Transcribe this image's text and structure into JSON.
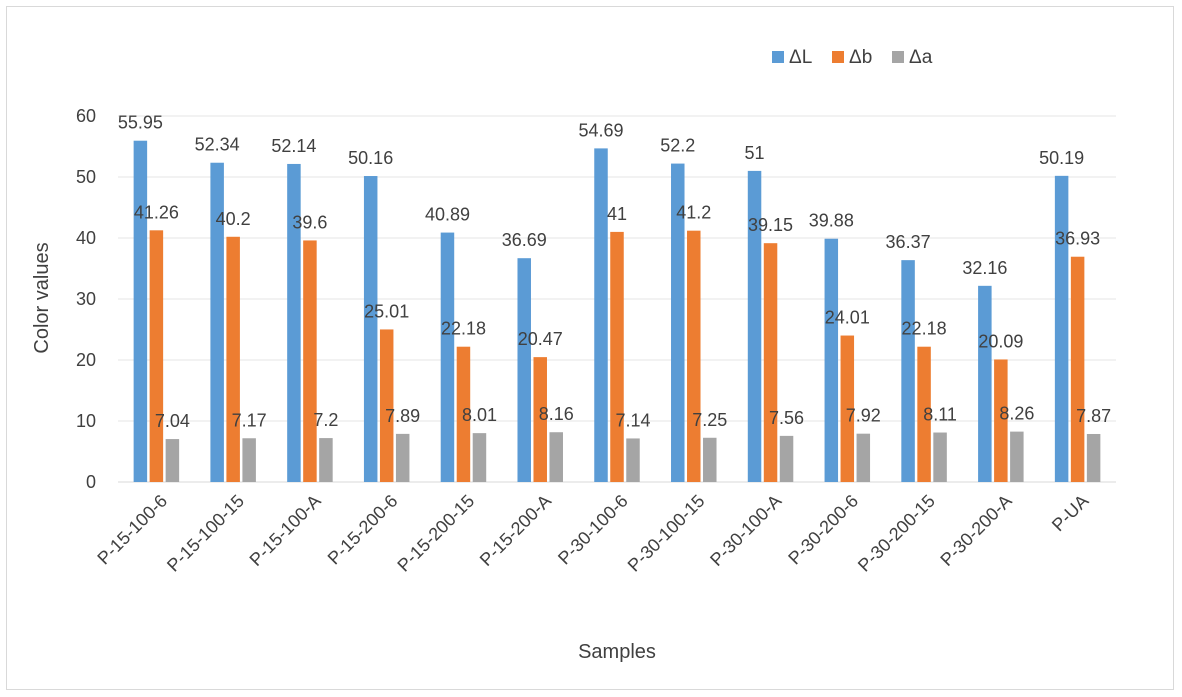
{
  "chart_data": {
    "type": "bar",
    "title": "",
    "xlabel": "Samples",
    "ylabel": "Color values",
    "ylim": [
      0,
      60
    ],
    "yticks": [
      0,
      10,
      20,
      30,
      40,
      50,
      60
    ],
    "grid": true,
    "legend_position": "top-right",
    "categories": [
      "P-15-100-6",
      "P-15-100-15",
      "P-15-100-A",
      "P-15-200-6",
      "P-15-200-15",
      "P-15-200-A",
      "P-30-100-6",
      "P-30-100-15",
      "P-30-100-A",
      "P-30-200-6",
      "P-30-200-15",
      "P-30-200-A",
      "P-UA"
    ],
    "series": [
      {
        "name": "ΔL",
        "color": "#5b9bd5",
        "values": [
          55.95,
          52.34,
          52.14,
          50.16,
          40.89,
          36.69,
          54.69,
          52.2,
          51,
          39.88,
          36.37,
          32.16,
          50.19
        ],
        "labels": [
          "55.95",
          "52.34",
          "52.14",
          "50.16",
          "40.89",
          "36.69",
          "54.69",
          "52.2",
          "51",
          "39.88",
          "36.37",
          "32.16",
          "50.19"
        ]
      },
      {
        "name": "Δb",
        "color": "#ed7d31",
        "values": [
          41.26,
          40.2,
          39.6,
          25.01,
          22.18,
          20.47,
          41,
          41.2,
          39.15,
          24.01,
          22.18,
          20.09,
          36.93
        ],
        "labels": [
          "41.26",
          "40.2",
          "39.6",
          "25.01",
          "22.18",
          "20.47",
          "41",
          "41.2",
          "39.15",
          "24.01",
          "22.18",
          "20.09",
          "36.93"
        ]
      },
      {
        "name": "Δa",
        "color": "#a5a5a5",
        "values": [
          7.04,
          7.17,
          7.2,
          7.89,
          8.01,
          8.16,
          7.14,
          7.25,
          7.56,
          7.92,
          8.11,
          8.26,
          7.87
        ],
        "labels": [
          "7.04",
          "7.17",
          "7.2",
          "7.89",
          "8.01",
          "8.16",
          "7.14",
          "7.25",
          "7.56",
          "7.92",
          "8.11",
          "8.26",
          "7.87"
        ]
      }
    ]
  }
}
